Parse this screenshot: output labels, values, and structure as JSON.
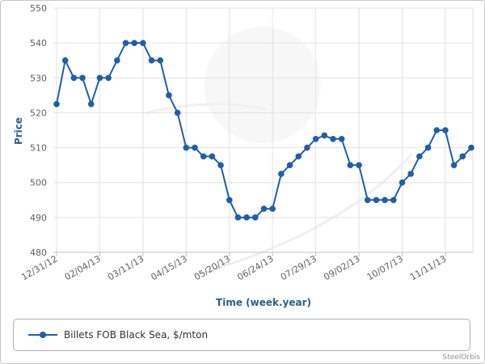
{
  "chart_data": {
    "type": "line",
    "xlabel": "Time (week.year)",
    "ylabel": "Price",
    "ylim": [
      480,
      550
    ],
    "y_ticks": [
      480,
      490,
      500,
      510,
      520,
      530,
      540,
      550
    ],
    "x_tick_labels": [
      "12/31/12",
      "02/04/13",
      "03/11/13",
      "04/15/13",
      "05/20/13",
      "06/24/13",
      "07/29/13",
      "09/02/13",
      "10/07/13",
      "11/11/13"
    ],
    "x_tick_step_weeks": 5,
    "grid": true,
    "legend_position": "bottom",
    "series": [
      {
        "name": "Billets FOB Black Sea, $/mton",
        "color": "#1f5fa8",
        "values": [
          522.5,
          535,
          530,
          530,
          522.5,
          530,
          530,
          535,
          540,
          540,
          540,
          535,
          535,
          525,
          520,
          510,
          510,
          507.5,
          507.5,
          505,
          495,
          490,
          490,
          490,
          492.5,
          492.5,
          502.5,
          505,
          507.5,
          510,
          512.5,
          513.5,
          512.5,
          512.5,
          505,
          505,
          495,
          495,
          495,
          495,
          500,
          502.5,
          507.5,
          510,
          515,
          515,
          505,
          507.5,
          510
        ]
      }
    ]
  },
  "legend": {
    "label": "Billets FOB Black Sea, $/mton"
  },
  "credit": "SteelOrbis"
}
